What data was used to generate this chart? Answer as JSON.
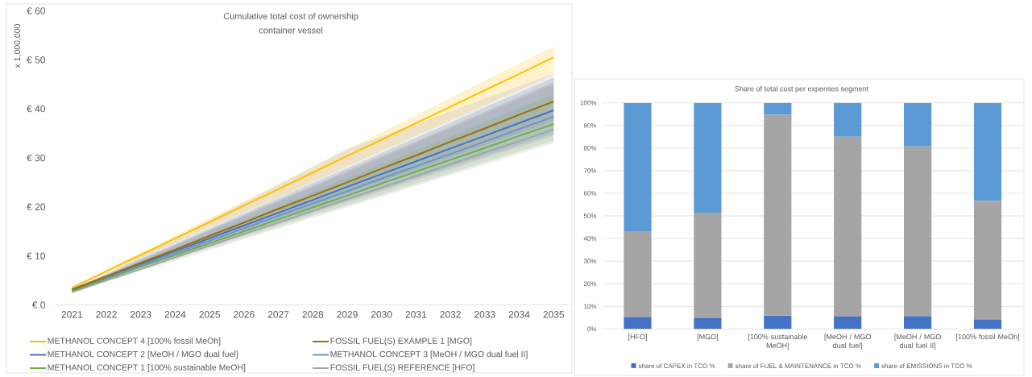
{
  "chart_data": [
    {
      "type": "line",
      "title": "Cumulative total cost of ownership",
      "subtitle": "container vessel",
      "ylabel": "x 1,000,000",
      "categories": [
        "2021",
        "2022",
        "2023",
        "2024",
        "2025",
        "2026",
        "2027",
        "2028",
        "2029",
        "2030",
        "2031",
        "2032",
        "2033",
        "2034",
        "2035"
      ],
      "ylim": [
        0,
        60
      ],
      "yticks": [
        {
          "value": 0,
          "label": "€ 0"
        },
        {
          "value": 10,
          "label": "€ 10"
        },
        {
          "value": 20,
          "label": "€ 20"
        },
        {
          "value": 30,
          "label": "€ 30"
        },
        {
          "value": 40,
          "label": "€ 40"
        },
        {
          "value": 50,
          "label": "€ 50"
        },
        {
          "value": 60,
          "label": "€ 60"
        }
      ],
      "legend": "bottom",
      "line_style": "solid",
      "series": [
        {
          "name": "METHANOL CONCEPT 4 [100% fossil MeOh]",
          "color": "#ffc000",
          "values": [
            3.5,
            6.9,
            10.2,
            13.6,
            16.9,
            20.3,
            23.6,
            27.0,
            30.4,
            33.7,
            37.1,
            40.4,
            43.8,
            47.1,
            50.5
          ],
          "lower": [
            3.3,
            6.4,
            9.5,
            12.7,
            15.8,
            18.9,
            22.0,
            25.1,
            28.3,
            31.4,
            34.5,
            37.6,
            40.7,
            43.9,
            47.0
          ],
          "upper": [
            3.7,
            7.2,
            10.7,
            14.2,
            17.7,
            21.2,
            24.7,
            28.2,
            31.7,
            35.2,
            38.7,
            42.2,
            45.7,
            49.2,
            52.7
          ]
        },
        {
          "name": "FOSSIL FUEL(S) EXAMPLE 1 [MGO]",
          "color": "#9c6f00",
          "values": [
            3.1,
            5.8,
            8.6,
            11.3,
            14.1,
            16.8,
            19.6,
            22.3,
            25.0,
            27.8,
            30.5,
            33.3,
            36.0,
            38.8,
            41.5
          ],
          "lower": [
            3.0,
            5.5,
            7.9,
            10.4,
            12.9,
            15.3,
            17.8,
            20.2,
            22.7,
            25.2,
            27.6,
            30.1,
            32.6,
            35.0,
            37.5
          ],
          "upper": [
            3.2,
            6.2,
            9.2,
            12.3,
            15.3,
            18.3,
            21.3,
            24.3,
            27.4,
            30.4,
            33.4,
            36.4,
            39.4,
            42.5,
            45.5
          ]
        },
        {
          "name": "METHANOL CONCEPT 2 [MeOH / MGO dual fuel]",
          "color": "#4472c4",
          "values": [
            3.2,
            5.8,
            8.4,
            11.0,
            13.6,
            16.2,
            18.8,
            21.4,
            24.1,
            26.7,
            29.3,
            31.9,
            34.5,
            37.1,
            39.7
          ],
          "lower": [
            3.1,
            5.4,
            7.7,
            9.9,
            12.2,
            14.5,
            16.8,
            19.1,
            21.3,
            23.6,
            25.9,
            28.2,
            30.4,
            32.7,
            35.0
          ],
          "upper": [
            3.3,
            6.4,
            9.5,
            12.5,
            15.6,
            18.7,
            21.8,
            24.9,
            27.9,
            31.0,
            34.1,
            37.2,
            40.3,
            43.3,
            46.4
          ]
        },
        {
          "name": "METHANOL CONCEPT 3 [MeOH / MGO dual fuel II]",
          "color": "#6a93d8",
          "values": [
            3.0,
            5.5,
            8.1,
            10.6,
            13.1,
            15.6,
            18.2,
            20.7,
            23.2,
            25.8,
            28.3,
            30.8,
            33.3,
            35.9,
            38.4
          ],
          "lower": [
            2.9,
            5.2,
            7.4,
            9.7,
            11.9,
            14.2,
            16.4,
            18.7,
            20.9,
            23.2,
            25.5,
            27.7,
            30.0,
            32.2,
            34.5
          ],
          "upper": [
            3.1,
            6.1,
            9.1,
            12.1,
            15.1,
            18.1,
            21.1,
            24.1,
            27.0,
            30.0,
            33.0,
            36.0,
            39.0,
            42.0,
            45.0
          ]
        },
        {
          "name": "METHANOL CONCEPT 1 [100% sustainable MeOH]",
          "color": "#70ad47",
          "values": [
            2.9,
            5.3,
            7.8,
            10.2,
            12.6,
            15.0,
            17.5,
            19.9,
            22.3,
            24.8,
            27.2,
            29.6,
            32.0,
            34.5,
            36.9
          ],
          "lower": [
            2.8,
            5.0,
            7.2,
            9.4,
            11.6,
            13.8,
            16.0,
            18.2,
            20.3,
            22.5,
            24.7,
            26.9,
            29.1,
            31.3,
            33.5
          ],
          "upper": [
            3.0,
            5.9,
            8.7,
            11.6,
            14.4,
            17.3,
            20.1,
            23.0,
            25.9,
            28.7,
            31.6,
            34.4,
            37.3,
            40.1,
            43.0
          ]
        },
        {
          "name": "FOSSIL FUEL(S) REFERENCE [HFO]",
          "color": "#a5a5a5",
          "values": [
            2.6,
            5.0,
            7.3,
            9.7,
            12.1,
            14.5,
            16.8,
            19.2,
            21.6,
            23.9,
            26.3,
            28.7,
            31.1,
            33.4,
            35.8
          ],
          "lower": [
            2.5,
            4.7,
            6.9,
            9.0,
            11.2,
            13.4,
            15.6,
            17.8,
            19.9,
            22.1,
            24.3,
            26.5,
            28.6,
            30.8,
            33.0
          ],
          "upper": [
            2.7,
            6.3,
            10.0,
            13.6,
            17.3,
            20.9,
            24.5,
            28.2,
            31.8,
            34.4,
            36.9,
            39.5,
            42.1,
            44.6,
            47.2
          ]
        }
      ]
    },
    {
      "type": "bar",
      "stacked": true,
      "title": "Share of total cost per expenses segment",
      "categories": [
        "[HFO]",
        "[MGO]",
        "[100% sustainable MeOH]",
        "[MeOH / MGO dual fuel]",
        "[MeOH / MGO dual fuel II]",
        "[100% fossil MeOh]"
      ],
      "ylim": [
        0,
        100
      ],
      "yticks": [
        {
          "value": 0,
          "label": "0%"
        },
        {
          "value": 10,
          "label": "10%"
        },
        {
          "value": 20,
          "label": "20%"
        },
        {
          "value": 30,
          "label": "30%"
        },
        {
          "value": 40,
          "label": "40%"
        },
        {
          "value": 50,
          "label": "50%"
        },
        {
          "value": 60,
          "label": "60%"
        },
        {
          "value": 70,
          "label": "70%"
        },
        {
          "value": 80,
          "label": "80%"
        },
        {
          "value": 90,
          "label": "90%"
        },
        {
          "value": 100,
          "label": "100%"
        }
      ],
      "grid": "y",
      "legend": "bottom",
      "series": [
        {
          "name": "share of CAPEX in TCO %",
          "color": "#4472c4",
          "values": [
            5.3,
            4.8,
            6.0,
            5.6,
            5.7,
            4.2
          ]
        },
        {
          "name": "share of FUEL & MAINTENANCE in TCO %",
          "color": "#a5a5a5",
          "values": [
            37.7,
            46.6,
            88.7,
            79.4,
            75.0,
            52.5
          ]
        },
        {
          "name": "share of EMISSIONS in TCO %",
          "color": "#5b9bd5",
          "values": [
            57.0,
            48.6,
            5.3,
            15.0,
            19.3,
            43.3
          ]
        }
      ]
    }
  ]
}
